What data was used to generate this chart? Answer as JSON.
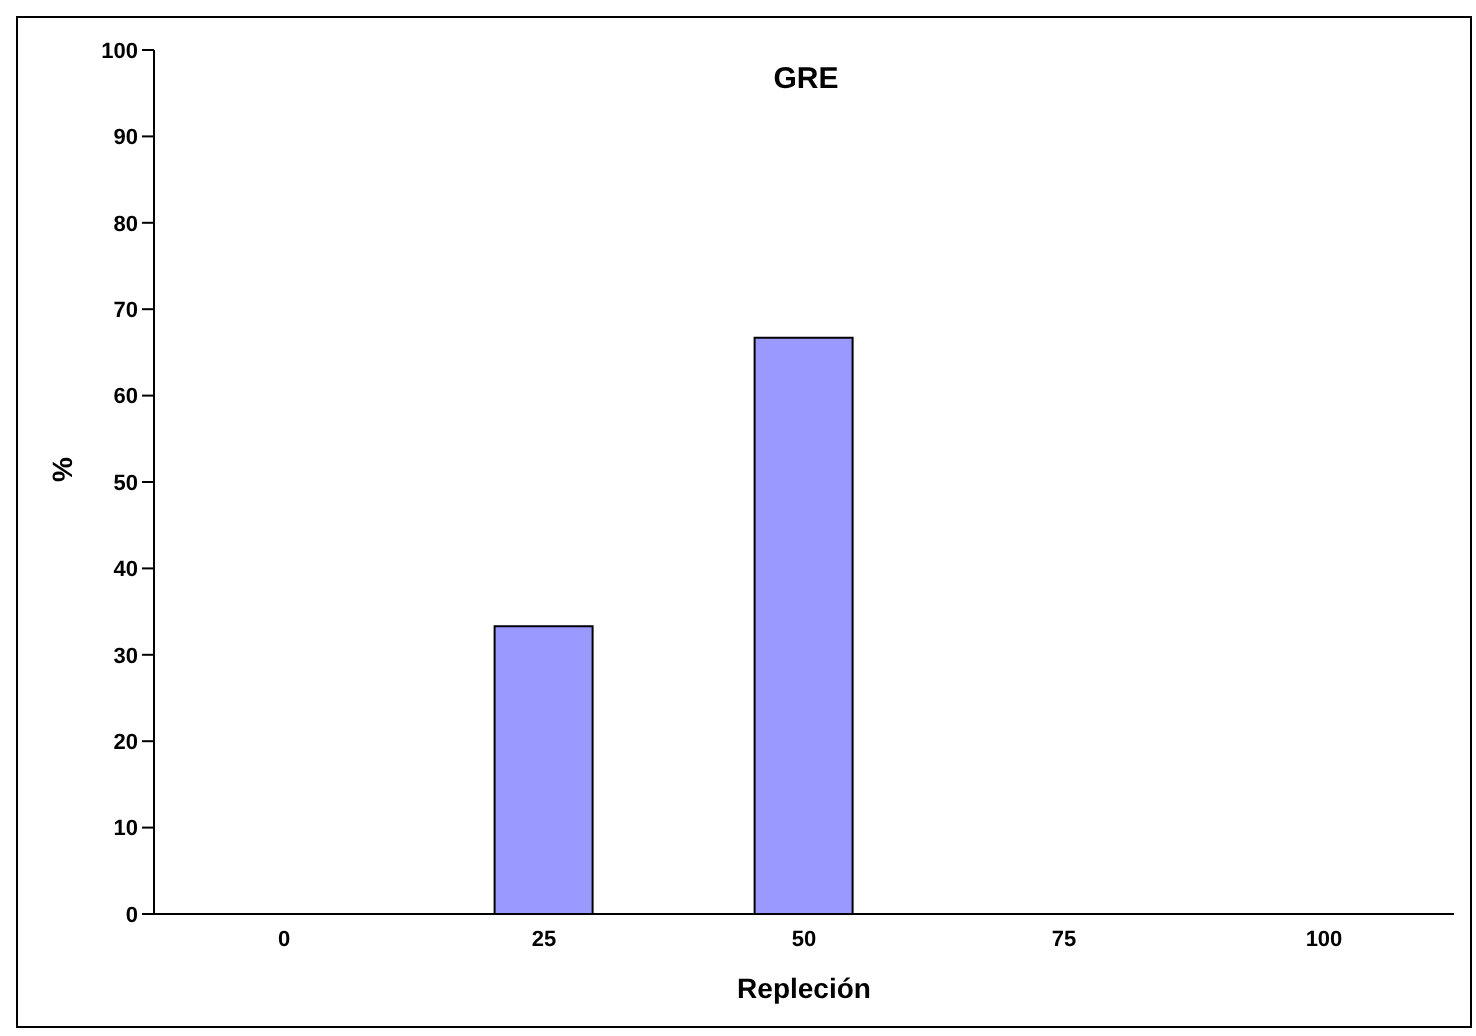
{
  "chart_data": {
    "type": "bar",
    "title": "GRE",
    "xlabel": "Repleción",
    "ylabel": "%",
    "categories": [
      "0",
      "25",
      "50",
      "75",
      "100"
    ],
    "values": [
      0,
      33.3,
      66.7,
      0,
      0
    ],
    "color": "#9999ff",
    "ylim": [
      0,
      100
    ],
    "yticks": [
      0,
      10,
      20,
      30,
      40,
      50,
      60,
      70,
      80,
      90,
      100
    ],
    "grid": false,
    "legend": false
  }
}
